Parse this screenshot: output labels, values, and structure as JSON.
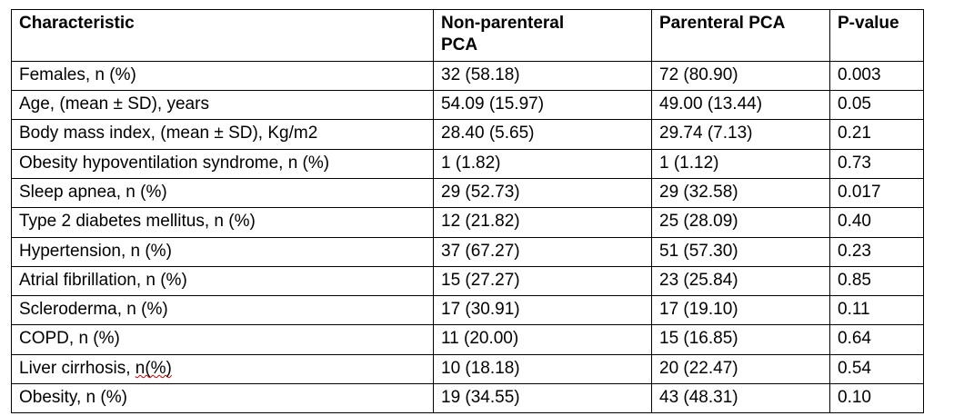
{
  "colors": {
    "spellcheck_underline": "#c00000",
    "table_border": "#000000"
  },
  "table": {
    "headers": {
      "characteristic": "Characteristic",
      "non_parenteral": "Non-parenteral\nPCA",
      "parenteral": "Parenteral PCA",
      "p_value": "P-value"
    },
    "rows": [
      {
        "characteristic": "Females, n (%)",
        "non_parenteral": "32 (58.18)",
        "parenteral": "72 (80.90)",
        "p_value": "0.003"
      },
      {
        "characteristic": "Age, (mean ± SD), years",
        "non_parenteral": "54.09 (15.97)",
        "parenteral": "49.00 (13.44)",
        "p_value": "0.05"
      },
      {
        "characteristic": "Body mass index, (mean ± SD), Kg/m2",
        "non_parenteral": "28.40 (5.65)",
        "parenteral": "29.74 (7.13)",
        "p_value": "0.21"
      },
      {
        "characteristic": "Obesity hypoventilation syndrome, n (%)",
        "non_parenteral": "1 (1.82)",
        "parenteral": "1 (1.12)",
        "p_value": "0.73"
      },
      {
        "characteristic": "Sleep apnea, n (%)",
        "non_parenteral": "29 (52.73)",
        "parenteral": "29 (32.58)",
        "p_value": "0.017"
      },
      {
        "characteristic": "Type 2 diabetes mellitus, n (%)",
        "non_parenteral": "12 (21.82)",
        "parenteral": "25 (28.09)",
        "p_value": "0.40"
      },
      {
        "characteristic": "Hypertension, n (%)",
        "non_parenteral": "37 (67.27)",
        "parenteral": "51 (57.30)",
        "p_value": "0.23"
      },
      {
        "characteristic": "Atrial fibrillation, n (%)",
        "non_parenteral": "15 (27.27)",
        "parenteral": "23 (25.84)",
        "p_value": "0.85"
      },
      {
        "characteristic": "Scleroderma, n (%)",
        "non_parenteral": "17 (30.91)",
        "parenteral": "17 (19.10)",
        "p_value": "0.11"
      },
      {
        "characteristic": "COPD, n (%)",
        "non_parenteral": "11 (20.00)",
        "parenteral": "15 (16.85)",
        "p_value": "0.64"
      },
      {
        "characteristic_prefix": "Liver cirrhosis, ",
        "characteristic_flagged": "n(%)",
        "non_parenteral": "10 (18.18)",
        "parenteral": "20 (22.47)",
        "p_value": "0.54"
      },
      {
        "characteristic": "Obesity, n (%)",
        "non_parenteral": "19 (34.55)",
        "parenteral": "43 (48.31)",
        "p_value": "0.10"
      }
    ]
  }
}
